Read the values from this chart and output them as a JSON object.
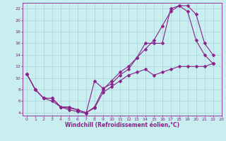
{
  "xlabel": "Windchill (Refroidissement éolien,°C)",
  "bg_color": "#c8eef0",
  "grid_color": "#b0d8dc",
  "line_color": "#882288",
  "xlim": [
    -0.5,
    23
  ],
  "ylim": [
    3.5,
    23
  ],
  "xticks": [
    0,
    1,
    2,
    3,
    4,
    5,
    6,
    7,
    8,
    9,
    10,
    11,
    12,
    13,
    14,
    15,
    16,
    17,
    18,
    19,
    20,
    21,
    22,
    23
  ],
  "yticks": [
    4,
    6,
    8,
    10,
    12,
    14,
    16,
    18,
    20,
    22
  ],
  "line1_x": [
    0,
    1,
    2,
    3,
    4,
    5,
    6,
    7,
    8,
    9,
    10,
    11,
    12,
    13,
    14,
    15,
    16,
    17,
    18,
    19,
    20,
    21,
    22
  ],
  "line1_y": [
    10.7,
    8.0,
    6.5,
    6.5,
    5.0,
    4.5,
    4.2,
    3.9,
    9.5,
    8.2,
    9.0,
    10.5,
    11.5,
    13.5,
    16.0,
    16.0,
    16.0,
    22.0,
    22.5,
    21.5,
    16.5,
    14.0,
    12.5
  ],
  "line2_x": [
    0,
    1,
    2,
    3,
    4,
    5,
    6,
    7,
    8,
    9,
    10,
    11,
    12,
    13,
    14,
    15,
    16,
    17,
    18,
    19,
    20,
    21,
    22
  ],
  "line2_y": [
    10.7,
    8.0,
    6.5,
    6.5,
    5.0,
    5.0,
    4.5,
    4.0,
    5.0,
    8.0,
    9.5,
    11.0,
    12.0,
    13.5,
    15.0,
    16.5,
    19.0,
    21.5,
    22.5,
    22.5,
    21.0,
    16.0,
    14.0
  ],
  "line3_x": [
    0,
    1,
    2,
    3,
    4,
    5,
    6,
    7,
    8,
    9,
    10,
    11,
    12,
    13,
    14,
    15,
    16,
    17,
    18,
    19,
    20,
    21,
    22
  ],
  "line3_y": [
    10.7,
    8.0,
    6.5,
    6.0,
    5.0,
    4.8,
    4.5,
    4.0,
    4.8,
    7.5,
    8.5,
    9.5,
    10.5,
    11.0,
    11.5,
    10.5,
    11.0,
    11.5,
    12.0,
    12.0,
    12.0,
    12.0,
    12.5
  ]
}
